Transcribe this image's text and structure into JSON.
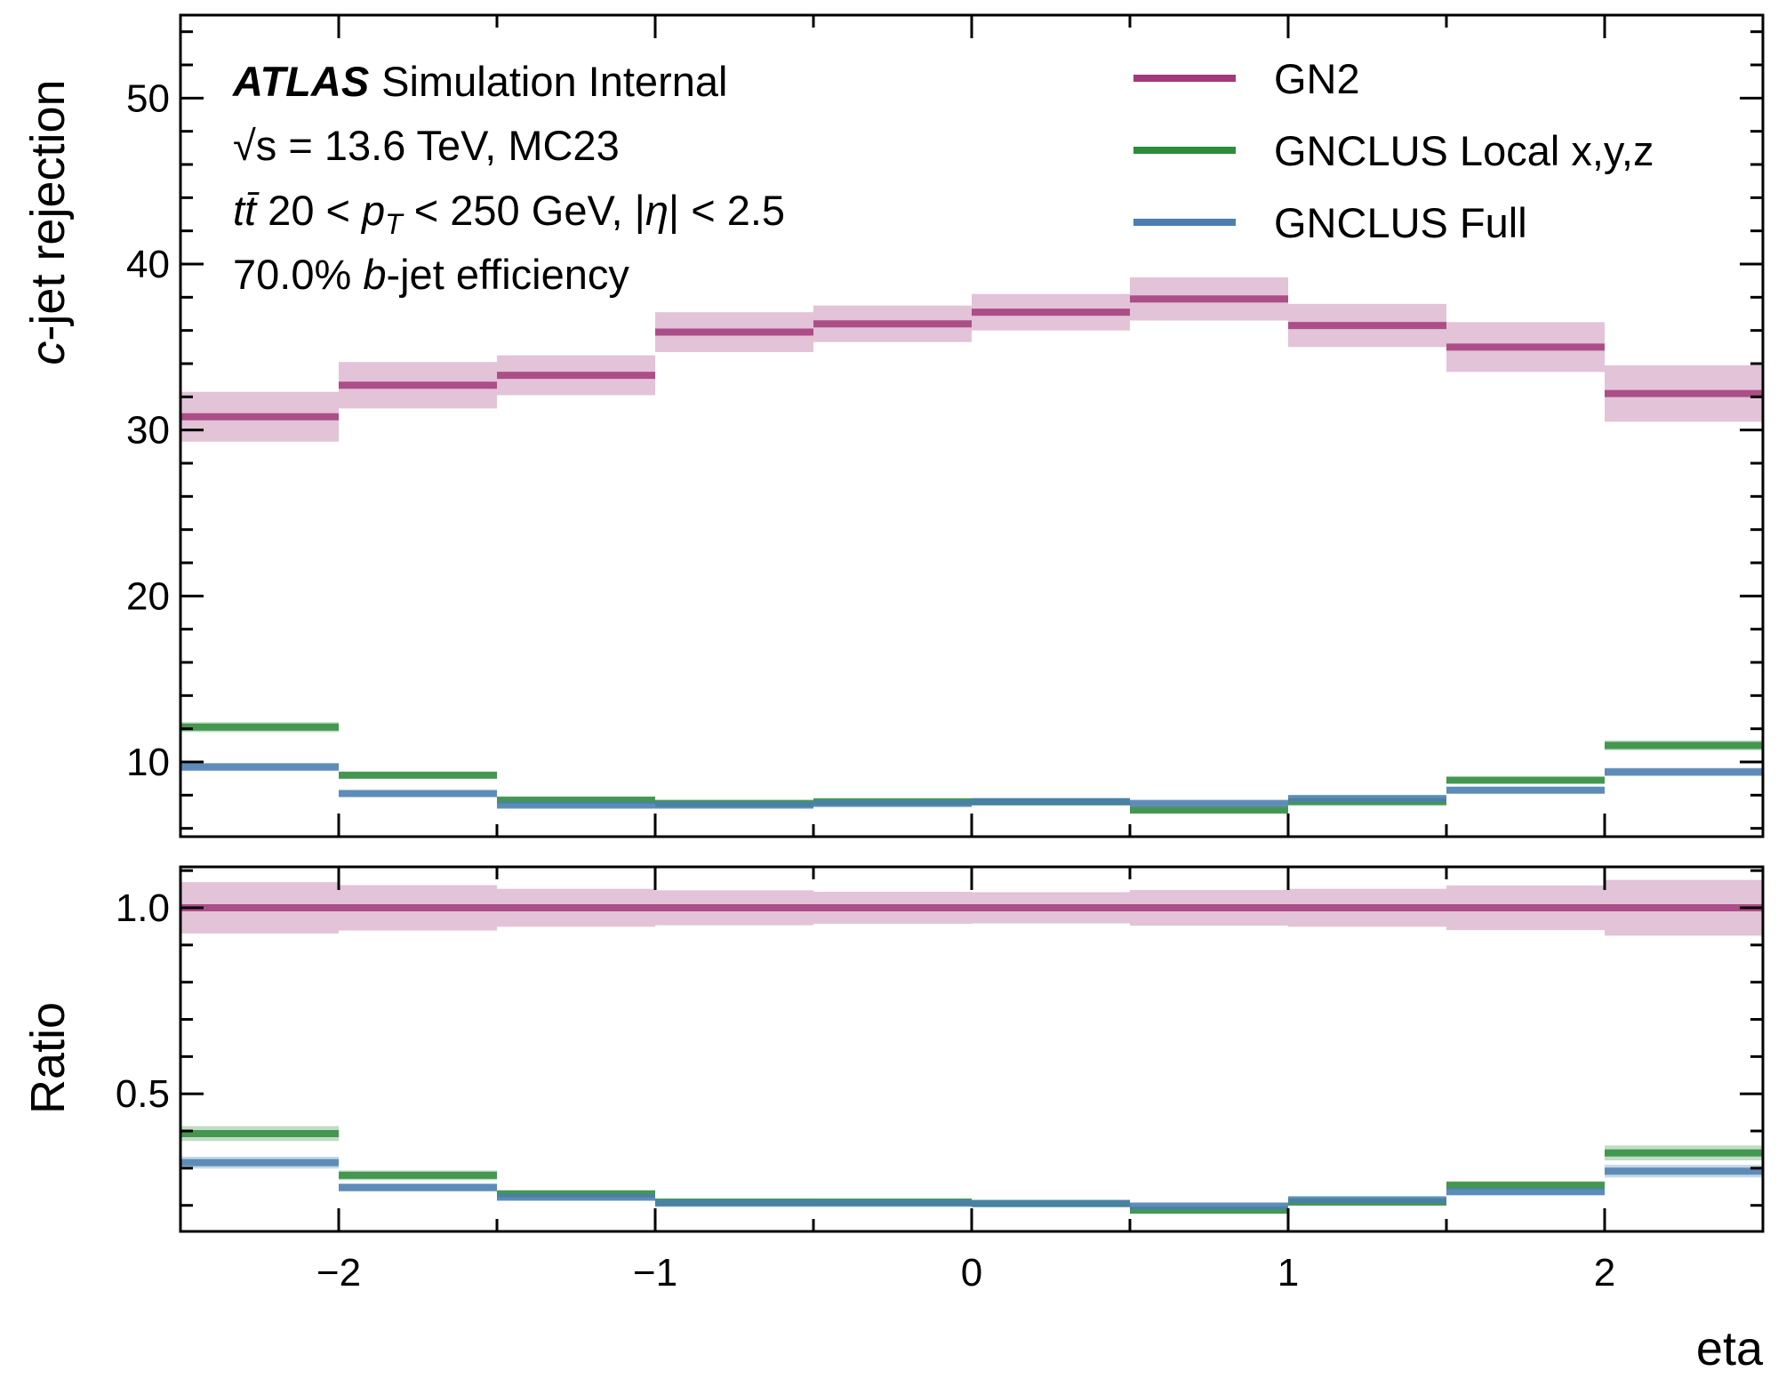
{
  "colors": {
    "GN2": "#a2397a",
    "GNCLUS Local x,y,z": "#2e8b3c",
    "GNCLUS Full": "#4a7fb0"
  },
  "info": {
    "atlas": "ATLAS",
    "simulation": "Simulation Internal",
    "line2_pre": "√s",
    "line2_post": " = 13.6 TeV, MC23",
    "line3_tt": "tt̄",
    "line3_a": " 20 < ",
    "line3_pt": "p",
    "line3_sub": "T",
    "line3_b": " < 250 GeV, |",
    "line3_eta": "η",
    "line3_c": "| < 2.5",
    "line4_a": "70.0% ",
    "line4_b": "b",
    "line4_c": "-jet efficiency"
  },
  "chart_data": {
    "type": "line",
    "step": true,
    "bin_edges": [
      -2.5,
      -2.0,
      -1.5,
      -1.0,
      -0.5,
      0.0,
      0.5,
      1.0,
      1.5,
      2.0,
      2.5
    ],
    "xlabel": "eta",
    "xlim": [
      -2.5,
      2.5
    ],
    "xticks": [
      -2,
      -1,
      0,
      1,
      2
    ],
    "xtick_labels": [
      "−2",
      "−1",
      "0",
      "1",
      "2"
    ],
    "legend_position": "top-right",
    "panels": [
      {
        "ylabel_italic": "c",
        "ylabel_rest": "-jet rejection",
        "ylim": [
          5.5,
          55
        ],
        "yticks": [
          10,
          20,
          30,
          40,
          50
        ],
        "ytick_labels": [
          "10",
          "20",
          "30",
          "40",
          "50"
        ],
        "series": [
          {
            "name": "GN2",
            "values": [
              30.8,
              32.7,
              33.3,
              35.9,
              36.4,
              37.1,
              37.9,
              36.3,
              35.0,
              32.2
            ],
            "errors": [
              1.5,
              1.4,
              1.2,
              1.2,
              1.1,
              1.1,
              1.3,
              1.3,
              1.5,
              1.7
            ]
          },
          {
            "name": "GNCLUS Local x,y,z",
            "values": [
              12.1,
              9.2,
              7.7,
              7.5,
              7.6,
              7.6,
              7.1,
              7.6,
              8.9,
              11.0
            ],
            "errors": [
              0.3,
              0.2,
              0.15,
              0.15,
              0.15,
              0.15,
              0.15,
              0.15,
              0.2,
              0.3
            ]
          },
          {
            "name": "GNCLUS Full",
            "values": [
              9.7,
              8.1,
              7.4,
              7.4,
              7.5,
              7.6,
              7.5,
              7.8,
              8.3,
              9.4
            ],
            "errors": [
              0.25,
              0.2,
              0.15,
              0.15,
              0.15,
              0.15,
              0.15,
              0.15,
              0.2,
              0.25
            ]
          }
        ]
      },
      {
        "ylabel": "Ratio",
        "ylim": [
          0.13,
          1.11
        ],
        "yticks": [
          0.5,
          1.0
        ],
        "ytick_labels": [
          "0.5",
          "1.0"
        ],
        "series": [
          {
            "name": "GN2",
            "values": [
              1.0,
              1.0,
              1.0,
              1.0,
              1.0,
              1.0,
              1.0,
              1.0,
              1.0,
              1.0
            ],
            "errors": [
              0.069,
              0.061,
              0.051,
              0.047,
              0.043,
              0.042,
              0.048,
              0.051,
              0.06,
              0.075
            ]
          },
          {
            "name": "GNCLUS Local x,y,z",
            "values": [
              0.393,
              0.281,
              0.231,
              0.209,
              0.209,
              0.205,
              0.187,
              0.209,
              0.254,
              0.341
            ],
            "errors": [
              0.02,
              0.013,
              0.009,
              0.008,
              0.007,
              0.007,
              0.008,
              0.008,
              0.011,
              0.02
            ]
          },
          {
            "name": "GNCLUS Full",
            "values": [
              0.315,
              0.248,
              0.222,
              0.206,
              0.206,
              0.205,
              0.198,
              0.215,
              0.237,
              0.292
            ],
            "errors": [
              0.016,
              0.011,
              0.008,
              0.007,
              0.006,
              0.006,
              0.007,
              0.007,
              0.01,
              0.017
            ]
          }
        ]
      }
    ]
  }
}
